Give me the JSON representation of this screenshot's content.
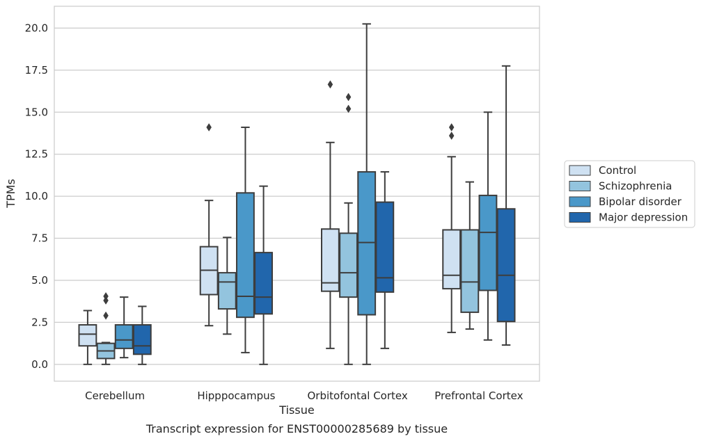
{
  "chart_data": {
    "type": "box",
    "xlabel": "Tissue",
    "ylabel": "TPMs",
    "caption": "Transcript expression for ENST00000285689 by tissue",
    "ylim": [
      -1,
      21.3
    ],
    "yticks": [
      0.0,
      2.5,
      5.0,
      7.5,
      10.0,
      12.5,
      15.0,
      17.5,
      20.0
    ],
    "ytick_labels": [
      "0.0",
      "2.5",
      "5.0",
      "7.5",
      "10.0",
      "12.5",
      "15.0",
      "17.5",
      "20.0"
    ],
    "grid": "horizontal",
    "legend_position": "right",
    "categories": [
      "Cerebellum",
      "Hipppocampus",
      "Orbitofontal Cortex",
      "Prefrontal Cortex"
    ],
    "series": [
      {
        "name": "Control",
        "color": "#cfe1f2",
        "boxes": [
          {
            "whislo": 0.0,
            "q1": 1.1,
            "med": 1.8,
            "q3": 2.35,
            "whishi": 3.2,
            "fliers": []
          },
          {
            "whislo": 2.3,
            "q1": 4.15,
            "med": 5.6,
            "q3": 7.0,
            "whishi": 9.75,
            "fliers": [
              14.1
            ]
          },
          {
            "whislo": 0.95,
            "q1": 4.35,
            "med": 4.85,
            "q3": 8.05,
            "whishi": 13.2,
            "fliers": [
              16.65
            ]
          },
          {
            "whislo": 1.9,
            "q1": 4.5,
            "med": 5.3,
            "q3": 8.0,
            "whishi": 12.35,
            "fliers": [
              13.6,
              14.1
            ]
          }
        ]
      },
      {
        "name": "Schizophrenia",
        "color": "#93c4de",
        "boxes": [
          {
            "whislo": 0.0,
            "q1": 0.35,
            "med": 0.8,
            "q3": 1.25,
            "whishi": 1.3,
            "fliers": [
              2.9,
              3.8,
              4.05
            ]
          },
          {
            "whislo": 1.8,
            "q1": 3.3,
            "med": 4.9,
            "q3": 5.45,
            "whishi": 7.55,
            "fliers": []
          },
          {
            "whislo": 0.0,
            "q1": 4.0,
            "med": 5.45,
            "q3": 7.8,
            "whishi": 9.6,
            "fliers": [
              15.2,
              15.9
            ]
          },
          {
            "whislo": 2.1,
            "q1": 3.1,
            "med": 4.9,
            "q3": 8.0,
            "whishi": 10.85,
            "fliers": []
          }
        ]
      },
      {
        "name": "Bipolar disorder",
        "color": "#4a98c9",
        "boxes": [
          {
            "whislo": 0.4,
            "q1": 0.95,
            "med": 1.45,
            "q3": 2.35,
            "whishi": 4.0,
            "fliers": []
          },
          {
            "whislo": 0.7,
            "q1": 2.8,
            "med": 4.05,
            "q3": 10.2,
            "whishi": 14.1,
            "fliers": []
          },
          {
            "whislo": 0.0,
            "q1": 2.95,
            "med": 7.25,
            "q3": 11.45,
            "whishi": 20.25,
            "fliers": []
          },
          {
            "whislo": 1.45,
            "q1": 4.4,
            "med": 7.85,
            "q3": 10.05,
            "whishi": 15.0,
            "fliers": []
          }
        ]
      },
      {
        "name": "Major depression",
        "color": "#2166ac",
        "boxes": [
          {
            "whislo": 0.0,
            "q1": 0.6,
            "med": 1.1,
            "q3": 2.35,
            "whishi": 3.45,
            "fliers": []
          },
          {
            "whislo": 0.0,
            "q1": 3.0,
            "med": 4.0,
            "q3": 6.65,
            "whishi": 10.6,
            "fliers": []
          },
          {
            "whislo": 0.95,
            "q1": 4.3,
            "med": 5.15,
            "q3": 9.65,
            "whishi": 11.45,
            "fliers": []
          },
          {
            "whislo": 1.15,
            "q1": 2.55,
            "med": 5.3,
            "q3": 9.25,
            "whishi": 17.75,
            "fliers": []
          }
        ]
      }
    ]
  }
}
